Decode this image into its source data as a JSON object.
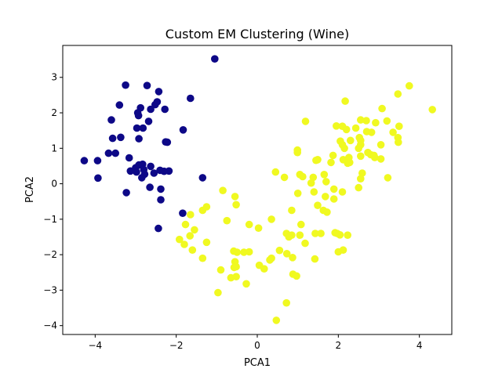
{
  "chart_data": {
    "type": "scatter",
    "title": "Custom EM Clustering (Wine)",
    "xlabel": "PCA1",
    "ylabel": "PCA2",
    "xlim": [
      -4.8,
      4.8
    ],
    "ylim": [
      -4.25,
      3.9
    ],
    "xticks": [
      -4,
      -2,
      0,
      2,
      4
    ],
    "yticks": [
      -4,
      -3,
      -2,
      -1,
      0,
      1,
      2,
      3
    ],
    "grid": false,
    "legend": "none",
    "series": [
      {
        "color": "#0d0887",
        "points": [
          [
            -1.05,
            3.52
          ],
          [
            -3.25,
            2.78
          ],
          [
            -2.72,
            2.77
          ],
          [
            -2.43,
            2.6
          ],
          [
            -1.65,
            2.41
          ],
          [
            -2.47,
            2.31
          ],
          [
            -2.52,
            2.23
          ],
          [
            -2.88,
            2.14
          ],
          [
            -3.4,
            2.22
          ],
          [
            -2.63,
            2.1
          ],
          [
            -2.28,
            2.1
          ],
          [
            -2.95,
            2.0
          ],
          [
            -2.93,
            1.92
          ],
          [
            -3.6,
            1.8
          ],
          [
            -2.68,
            1.76
          ],
          [
            -2.97,
            1.57
          ],
          [
            -2.82,
            1.57
          ],
          [
            -1.83,
            1.52
          ],
          [
            -3.57,
            1.28
          ],
          [
            -3.37,
            1.31
          ],
          [
            -2.92,
            1.27
          ],
          [
            -2.26,
            1.18
          ],
          [
            -2.22,
            1.17
          ],
          [
            -3.67,
            0.86
          ],
          [
            -3.5,
            0.86
          ],
          [
            -4.27,
            0.65
          ],
          [
            -3.94,
            0.65
          ],
          [
            -3.16,
            0.73
          ],
          [
            -2.92,
            0.53
          ],
          [
            -2.83,
            0.55
          ],
          [
            -2.63,
            0.49
          ],
          [
            -3.0,
            0.45
          ],
          [
            -2.8,
            0.4
          ],
          [
            -2.4,
            0.38
          ],
          [
            -2.18,
            0.36
          ],
          [
            -2.98,
            0.33
          ],
          [
            -3.13,
            0.36
          ],
          [
            -2.3,
            0.35
          ],
          [
            -2.55,
            0.3
          ],
          [
            -2.78,
            0.27
          ],
          [
            -2.85,
            0.17
          ],
          [
            -3.93,
            0.16
          ],
          [
            -2.65,
            -0.1
          ],
          [
            -2.38,
            -0.15
          ],
          [
            -3.23,
            -0.25
          ],
          [
            -2.38,
            -0.45
          ],
          [
            -1.84,
            -0.83
          ],
          [
            -2.44,
            -1.26
          ],
          [
            -1.35,
            0.17
          ]
        ]
      },
      {
        "color": "#f0f921",
        "points": [
          [
            4.32,
            2.09
          ],
          [
            3.75,
            2.76
          ],
          [
            3.47,
            2.53
          ],
          [
            2.17,
            2.33
          ],
          [
            3.08,
            2.12
          ],
          [
            3.2,
            1.77
          ],
          [
            2.92,
            1.72
          ],
          [
            2.69,
            1.78
          ],
          [
            2.55,
            1.8
          ],
          [
            1.19,
            1.76
          ],
          [
            3.5,
            1.62
          ],
          [
            1.95,
            1.63
          ],
          [
            2.1,
            1.62
          ],
          [
            2.2,
            1.53
          ],
          [
            2.43,
            1.57
          ],
          [
            2.7,
            1.47
          ],
          [
            2.82,
            1.45
          ],
          [
            3.35,
            1.45
          ],
          [
            2.52,
            1.3
          ],
          [
            3.47,
            1.3
          ],
          [
            2.55,
            1.22
          ],
          [
            2.05,
            1.2
          ],
          [
            2.3,
            1.22
          ],
          [
            3.48,
            1.17
          ],
          [
            2.1,
            1.1
          ],
          [
            2.55,
            1.1
          ],
          [
            3.05,
            1.1
          ],
          [
            2.5,
            1.0
          ],
          [
            2.15,
            1.0
          ],
          [
            0.99,
            0.95
          ],
          [
            2.73,
            0.88
          ],
          [
            0.99,
            0.88
          ],
          [
            2.8,
            0.82
          ],
          [
            2.88,
            0.8
          ],
          [
            2.55,
            0.78
          ],
          [
            1.87,
            0.8
          ],
          [
            2.26,
            0.74
          ],
          [
            2.9,
            0.74
          ],
          [
            3.05,
            0.7
          ],
          [
            2.12,
            0.68
          ],
          [
            1.49,
            0.68
          ],
          [
            1.45,
            0.66
          ],
          [
            2.23,
            0.58
          ],
          [
            2.28,
            0.6
          ],
          [
            1.82,
            0.6
          ],
          [
            0.45,
            0.33
          ],
          [
            2.59,
            0.3
          ],
          [
            1.05,
            0.26
          ],
          [
            1.65,
            0.26
          ],
          [
            0.67,
            0.18
          ],
          [
            1.12,
            0.2
          ],
          [
            1.38,
            0.18
          ],
          [
            2.55,
            0.14
          ],
          [
            3.22,
            0.17
          ],
          [
            1.7,
            0.06
          ],
          [
            1.33,
            0.02
          ],
          [
            2.5,
            -0.11
          ],
          [
            1.89,
            -0.15
          ],
          [
            -0.85,
            -0.19
          ],
          [
            2.1,
            -0.23
          ],
          [
            1.4,
            -0.23
          ],
          [
            1.0,
            -0.27
          ],
          [
            -0.55,
            -0.36
          ],
          [
            1.68,
            -0.36
          ],
          [
            1.89,
            -0.43
          ],
          [
            -0.52,
            -0.59
          ],
          [
            1.49,
            -0.61
          ],
          [
            -1.25,
            -0.65
          ],
          [
            -1.35,
            -0.75
          ],
          [
            1.63,
            -0.75
          ],
          [
            0.85,
            -0.75
          ],
          [
            -1.65,
            -0.87
          ],
          [
            -0.75,
            -1.04
          ],
          [
            0.35,
            -1.0
          ],
          [
            1.72,
            -0.8
          ],
          [
            1.08,
            -1.15
          ],
          [
            -1.77,
            -1.15
          ],
          [
            -0.2,
            -1.15
          ],
          [
            -1.55,
            -1.3
          ],
          [
            0.03,
            -1.25
          ],
          [
            -1.66,
            -1.47
          ],
          [
            0.72,
            -1.4
          ],
          [
            0.85,
            -1.45
          ],
          [
            1.05,
            -1.45
          ],
          [
            1.43,
            -1.4
          ],
          [
            1.57,
            -1.4
          ],
          [
            1.92,
            -1.38
          ],
          [
            2.04,
            -1.44
          ],
          [
            2.23,
            -1.45
          ],
          [
            1.97,
            -1.4
          ],
          [
            0.78,
            -1.5
          ],
          [
            -1.92,
            -1.57
          ],
          [
            -1.8,
            -1.71
          ],
          [
            1.18,
            -1.68
          ],
          [
            -1.25,
            -1.65
          ],
          [
            -1.6,
            -1.87
          ],
          [
            0.55,
            -1.88
          ],
          [
            2.12,
            -1.87
          ],
          [
            2.0,
            -1.92
          ],
          [
            -0.58,
            -1.9
          ],
          [
            -0.5,
            -1.93
          ],
          [
            -0.33,
            -1.93
          ],
          [
            -0.2,
            -1.92
          ],
          [
            0.73,
            -1.97
          ],
          [
            0.35,
            -2.1
          ],
          [
            0.31,
            -2.15
          ],
          [
            -1.35,
            -2.1
          ],
          [
            0.87,
            -2.08
          ],
          [
            -0.55,
            -2.2
          ],
          [
            1.42,
            -2.12
          ],
          [
            -0.52,
            -2.34
          ],
          [
            -0.57,
            -2.36
          ],
          [
            0.05,
            -2.3
          ],
          [
            0.17,
            -2.4
          ],
          [
            -0.9,
            -2.43
          ],
          [
            0.88,
            -2.55
          ],
          [
            -0.65,
            -2.65
          ],
          [
            -0.52,
            -2.62
          ],
          [
            -0.27,
            -2.82
          ],
          [
            0.97,
            -2.6
          ],
          [
            -0.97,
            -3.07
          ],
          [
            0.72,
            -3.36
          ],
          [
            0.47,
            -3.85
          ]
        ]
      }
    ]
  }
}
